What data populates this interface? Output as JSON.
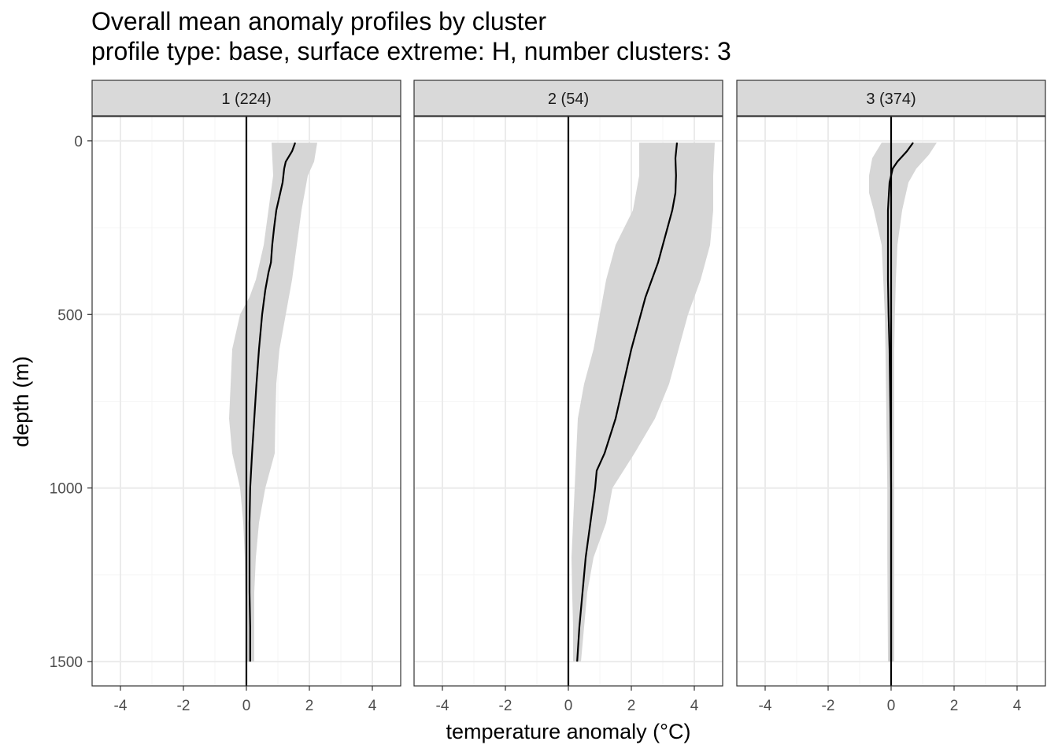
{
  "title": "Overall mean anomaly profiles by cluster",
  "subtitle": "profile type: base, surface extreme: H, number clusters: 3",
  "chart_data": {
    "type": "line",
    "description_of_encoding": "faceted depth profiles; line = mean anomaly, shaded ribbon = spread",
    "xlabel": "temperature anomaly (°C)",
    "ylabel": "depth (m)",
    "xlim": [
      -4.9,
      4.9
    ],
    "ylim": [
      1570,
      -70
    ],
    "y_reversed": true,
    "x_ticks": [
      -4,
      -2,
      0,
      2,
      4
    ],
    "x_tick_labels": [
      "-4",
      "-2",
      "0",
      "2",
      "4"
    ],
    "y_ticks": [
      0,
      500,
      1000,
      1500
    ],
    "y_tick_labels": [
      "0",
      "500",
      "1000",
      "1500"
    ],
    "grid": true,
    "reference_line_x": 0,
    "colors": {
      "line": "#000000",
      "ribbon": "#d6d6d6",
      "strip": "#d9d9d9",
      "grid_major": "#ebebeb",
      "grid_minor": "#f5f5f5",
      "border": "#333333"
    },
    "facets": [
      {
        "label": "1 (224)",
        "mean": [
          {
            "depth": 5,
            "anomaly": 1.55
          },
          {
            "depth": 30,
            "anomaly": 1.45
          },
          {
            "depth": 60,
            "anomaly": 1.25
          },
          {
            "depth": 80,
            "anomaly": 1.2
          },
          {
            "depth": 120,
            "anomaly": 1.15
          },
          {
            "depth": 160,
            "anomaly": 1.05
          },
          {
            "depth": 200,
            "anomaly": 0.95
          },
          {
            "depth": 250,
            "anomaly": 0.88
          },
          {
            "depth": 300,
            "anomaly": 0.82
          },
          {
            "depth": 350,
            "anomaly": 0.78
          },
          {
            "depth": 380,
            "anomaly": 0.7
          },
          {
            "depth": 430,
            "anomaly": 0.6
          },
          {
            "depth": 500,
            "anomaly": 0.5
          },
          {
            "depth": 600,
            "anomaly": 0.4
          },
          {
            "depth": 700,
            "anomaly": 0.32
          },
          {
            "depth": 800,
            "anomaly": 0.25
          },
          {
            "depth": 900,
            "anomaly": 0.18
          },
          {
            "depth": 1000,
            "anomaly": 0.12
          },
          {
            "depth": 1100,
            "anomaly": 0.1
          },
          {
            "depth": 1200,
            "anomaly": 0.1
          },
          {
            "depth": 1300,
            "anomaly": 0.1
          },
          {
            "depth": 1400,
            "anomaly": 0.12
          },
          {
            "depth": 1500,
            "anomaly": 0.12
          }
        ],
        "lower": [
          {
            "depth": 5,
            "anomaly": 0.8
          },
          {
            "depth": 100,
            "anomaly": 0.85
          },
          {
            "depth": 200,
            "anomaly": 0.7
          },
          {
            "depth": 300,
            "anomaly": 0.55
          },
          {
            "depth": 400,
            "anomaly": 0.3
          },
          {
            "depth": 450,
            "anomaly": 0.1
          },
          {
            "depth": 500,
            "anomaly": -0.2
          },
          {
            "depth": 600,
            "anomaly": -0.45
          },
          {
            "depth": 700,
            "anomaly": -0.5
          },
          {
            "depth": 800,
            "anomaly": -0.55
          },
          {
            "depth": 900,
            "anomaly": -0.45
          },
          {
            "depth": 1000,
            "anomaly": -0.2
          },
          {
            "depth": 1100,
            "anomaly": -0.1
          },
          {
            "depth": 1200,
            "anomaly": -0.05
          },
          {
            "depth": 1300,
            "anomaly": -0.03
          },
          {
            "depth": 1400,
            "anomaly": 0.0
          },
          {
            "depth": 1500,
            "anomaly": 0.0
          }
        ],
        "upper": [
          {
            "depth": 5,
            "anomaly": 2.25
          },
          {
            "depth": 60,
            "anomaly": 2.15
          },
          {
            "depth": 100,
            "anomaly": 1.95
          },
          {
            "depth": 150,
            "anomaly": 1.85
          },
          {
            "depth": 200,
            "anomaly": 1.75
          },
          {
            "depth": 300,
            "anomaly": 1.6
          },
          {
            "depth": 400,
            "anomaly": 1.45
          },
          {
            "depth": 500,
            "anomaly": 1.25
          },
          {
            "depth": 600,
            "anomaly": 1.05
          },
          {
            "depth": 700,
            "anomaly": 0.95
          },
          {
            "depth": 800,
            "anomaly": 0.92
          },
          {
            "depth": 900,
            "anomaly": 0.9
          },
          {
            "depth": 1000,
            "anomaly": 0.6
          },
          {
            "depth": 1100,
            "anomaly": 0.4
          },
          {
            "depth": 1200,
            "anomaly": 0.3
          },
          {
            "depth": 1300,
            "anomaly": 0.25
          },
          {
            "depth": 1400,
            "anomaly": 0.25
          },
          {
            "depth": 1500,
            "anomaly": 0.25
          }
        ]
      },
      {
        "label": "2 (54)",
        "mean": [
          {
            "depth": 5,
            "anomaly": 3.45
          },
          {
            "depth": 50,
            "anomaly": 3.4
          },
          {
            "depth": 100,
            "anomaly": 3.42
          },
          {
            "depth": 150,
            "anomaly": 3.4
          },
          {
            "depth": 200,
            "anomaly": 3.3
          },
          {
            "depth": 250,
            "anomaly": 3.15
          },
          {
            "depth": 300,
            "anomaly": 3.0
          },
          {
            "depth": 350,
            "anomaly": 2.85
          },
          {
            "depth": 400,
            "anomaly": 2.65
          },
          {
            "depth": 450,
            "anomaly": 2.45
          },
          {
            "depth": 500,
            "anomaly": 2.3
          },
          {
            "depth": 600,
            "anomaly": 2.0
          },
          {
            "depth": 700,
            "anomaly": 1.75
          },
          {
            "depth": 800,
            "anomaly": 1.5
          },
          {
            "depth": 900,
            "anomaly": 1.15
          },
          {
            "depth": 950,
            "anomaly": 0.9
          },
          {
            "depth": 1000,
            "anomaly": 0.85
          },
          {
            "depth": 1100,
            "anomaly": 0.7
          },
          {
            "depth": 1200,
            "anomaly": 0.55
          },
          {
            "depth": 1300,
            "anomaly": 0.45
          },
          {
            "depth": 1400,
            "anomaly": 0.35
          },
          {
            "depth": 1500,
            "anomaly": 0.28
          }
        ],
        "lower": [
          {
            "depth": 5,
            "anomaly": 2.25
          },
          {
            "depth": 100,
            "anomaly": 2.25
          },
          {
            "depth": 200,
            "anomaly": 2.05
          },
          {
            "depth": 300,
            "anomaly": 1.5
          },
          {
            "depth": 400,
            "anomaly": 1.2
          },
          {
            "depth": 500,
            "anomaly": 1.0
          },
          {
            "depth": 600,
            "anomaly": 0.8
          },
          {
            "depth": 700,
            "anomaly": 0.5
          },
          {
            "depth": 800,
            "anomaly": 0.3
          },
          {
            "depth": 900,
            "anomaly": 0.25
          },
          {
            "depth": 1000,
            "anomaly": 0.2
          },
          {
            "depth": 1100,
            "anomaly": 0.15
          },
          {
            "depth": 1200,
            "anomaly": 0.1
          },
          {
            "depth": 1300,
            "anomaly": 0.12
          },
          {
            "depth": 1400,
            "anomaly": 0.15
          },
          {
            "depth": 1500,
            "anomaly": 0.15
          }
        ],
        "upper": [
          {
            "depth": 5,
            "anomaly": 4.65
          },
          {
            "depth": 100,
            "anomaly": 4.6
          },
          {
            "depth": 200,
            "anomaly": 4.6
          },
          {
            "depth": 300,
            "anomaly": 4.5
          },
          {
            "depth": 400,
            "anomaly": 4.2
          },
          {
            "depth": 500,
            "anomaly": 3.8
          },
          {
            "depth": 600,
            "anomaly": 3.5
          },
          {
            "depth": 700,
            "anomaly": 3.2
          },
          {
            "depth": 800,
            "anomaly": 2.75
          },
          {
            "depth": 900,
            "anomaly": 2.1
          },
          {
            "depth": 1000,
            "anomaly": 1.4
          },
          {
            "depth": 1100,
            "anomaly": 1.2
          },
          {
            "depth": 1200,
            "anomaly": 0.8
          },
          {
            "depth": 1300,
            "anomaly": 0.6
          },
          {
            "depth": 1400,
            "anomaly": 0.5
          },
          {
            "depth": 1500,
            "anomaly": 0.4
          }
        ]
      },
      {
        "label": "3 (374)",
        "mean": [
          {
            "depth": 5,
            "anomaly": 0.7
          },
          {
            "depth": 30,
            "anomaly": 0.5
          },
          {
            "depth": 60,
            "anomaly": 0.2
          },
          {
            "depth": 80,
            "anomaly": 0.05
          },
          {
            "depth": 120,
            "anomaly": -0.05
          },
          {
            "depth": 200,
            "anomaly": -0.1
          },
          {
            "depth": 300,
            "anomaly": -0.1
          },
          {
            "depth": 400,
            "anomaly": -0.1
          },
          {
            "depth": 500,
            "anomaly": -0.08
          },
          {
            "depth": 600,
            "anomaly": -0.05
          },
          {
            "depth": 800,
            "anomaly": -0.02
          },
          {
            "depth": 1000,
            "anomaly": 0.0
          },
          {
            "depth": 1200,
            "anomaly": 0.0
          },
          {
            "depth": 1500,
            "anomaly": 0.0
          }
        ],
        "lower": [
          {
            "depth": 5,
            "anomaly": -0.3
          },
          {
            "depth": 50,
            "anomaly": -0.6
          },
          {
            "depth": 100,
            "anomaly": -0.7
          },
          {
            "depth": 150,
            "anomaly": -0.7
          },
          {
            "depth": 200,
            "anomaly": -0.55
          },
          {
            "depth": 300,
            "anomaly": -0.3
          },
          {
            "depth": 400,
            "anomaly": -0.25
          },
          {
            "depth": 500,
            "anomaly": -0.2
          },
          {
            "depth": 600,
            "anomaly": -0.18
          },
          {
            "depth": 800,
            "anomaly": -0.15
          },
          {
            "depth": 1000,
            "anomaly": -0.12
          },
          {
            "depth": 1200,
            "anomaly": -0.12
          },
          {
            "depth": 1500,
            "anomaly": -0.1
          }
        ],
        "upper": [
          {
            "depth": 5,
            "anomaly": 1.45
          },
          {
            "depth": 40,
            "anomaly": 1.2
          },
          {
            "depth": 80,
            "anomaly": 0.8
          },
          {
            "depth": 120,
            "anomaly": 0.55
          },
          {
            "depth": 200,
            "anomaly": 0.35
          },
          {
            "depth": 300,
            "anomaly": 0.2
          },
          {
            "depth": 400,
            "anomaly": 0.15
          },
          {
            "depth": 500,
            "anomaly": 0.12
          },
          {
            "depth": 600,
            "anomaly": 0.1
          },
          {
            "depth": 800,
            "anomaly": 0.1
          },
          {
            "depth": 1000,
            "anomaly": 0.1
          },
          {
            "depth": 1200,
            "anomaly": 0.1
          },
          {
            "depth": 1500,
            "anomaly": 0.1
          }
        ]
      }
    ]
  }
}
